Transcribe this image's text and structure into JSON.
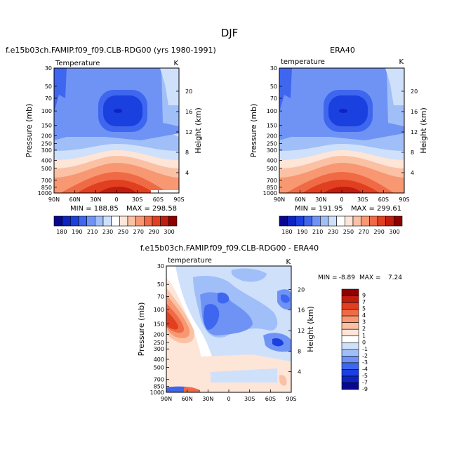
{
  "figure_title": "DJF",
  "colors": {
    "diverging": [
      "#08088f",
      "#0f23c0",
      "#1a40e0",
      "#3f66ee",
      "#6f93f5",
      "#a0bff8",
      "#cfe0fb",
      "#ffffff",
      "#fde5d7",
      "#fbc1a5",
      "#f79873",
      "#f06a45",
      "#e0401f",
      "#c01d0e",
      "#8e0000"
    ]
  },
  "chart_data": [
    {
      "type": "heatmap",
      "name": "model",
      "title": "f.e15b03ch.FAMIP.f09_f09.CLB-RDG00 (yrs 1980-1991)",
      "left_label": "Temperature",
      "units": "K",
      "ylabel": "Pressure (mb)",
      "ylabel_right": "Height (km)",
      "x_ticks": [
        "90N",
        "60N",
        "30N",
        "0",
        "30S",
        "60S",
        "90S"
      ],
      "y_ticks": [
        "30",
        "50",
        "70",
        "100",
        "150",
        "200",
        "250",
        "300",
        "400",
        "500",
        "700",
        "850",
        "1000"
      ],
      "right_ticks": [
        "20",
        "16",
        "12",
        "8",
        "4"
      ],
      "min_label": "MIN = 188.85",
      "max_label": "MAX = 298.58",
      "colorbar_labels": [
        "180",
        "190",
        "210",
        "230",
        "250",
        "270",
        "290",
        "300"
      ]
    },
    {
      "type": "heatmap",
      "name": "obs",
      "title": "ERA40",
      "left_label": "temperature",
      "units": "K",
      "ylabel": "Pressure (mb)",
      "ylabel_right": "Height (km)",
      "x_ticks": [
        "90N",
        "60N",
        "30N",
        "0",
        "30S",
        "60S",
        "90S"
      ],
      "y_ticks": [
        "30",
        "50",
        "70",
        "100",
        "150",
        "200",
        "250",
        "300",
        "400",
        "500",
        "700",
        "850",
        "1000"
      ],
      "right_ticks": [
        "20",
        "16",
        "12",
        "8",
        "4"
      ],
      "min_label": "MIN = 191.95",
      "max_label": "MAX = 299.61",
      "colorbar_labels": [
        "180",
        "190",
        "210",
        "230",
        "250",
        "270",
        "290",
        "300"
      ]
    },
    {
      "type": "heatmap",
      "name": "diff",
      "title": "f.e15b03ch.FAMIP.f09_f09.CLB-RDG00 - ERA40",
      "left_label": "temperature",
      "units": "K",
      "ylabel": "Pressure (mb)",
      "ylabel_right": "Height (km)",
      "x_ticks": [
        "90N",
        "60N",
        "30N",
        "0",
        "30S",
        "60S",
        "90S"
      ],
      "y_ticks": [
        "30",
        "50",
        "70",
        "100",
        "150",
        "200",
        "250",
        "300",
        "400",
        "500",
        "700",
        "850",
        "1000"
      ],
      "right_ticks": [
        "20",
        "16",
        "12",
        "8",
        "4"
      ],
      "min_label": "MIN =",
      "min_value": "-8.89",
      "max_label": "MAX =",
      "max_value": "7.24",
      "colorbar_labels": [
        "9",
        "7",
        "5",
        "4",
        "3",
        "2",
        "1",
        "0",
        "-1",
        "-2",
        "-3",
        "-4",
        "-5",
        "-7",
        "-9"
      ]
    }
  ]
}
